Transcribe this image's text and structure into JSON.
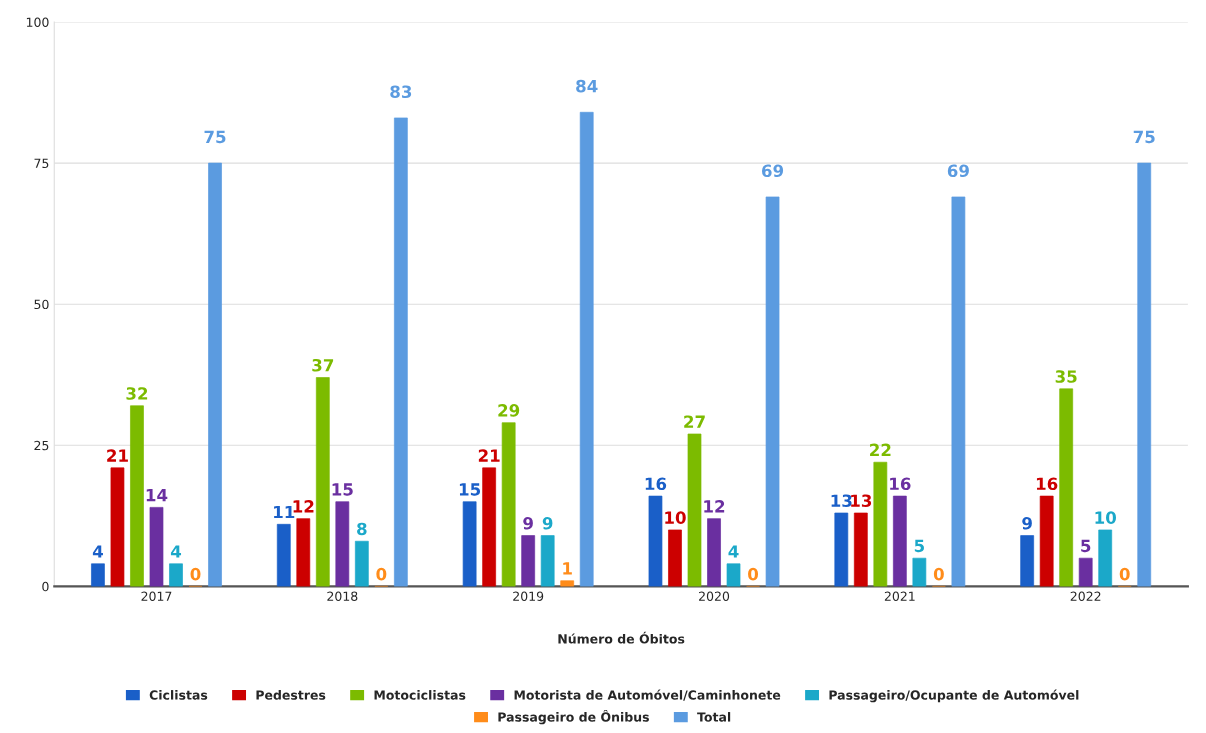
{
  "chart_data": {
    "type": "bar",
    "categories": [
      "2017",
      "2018",
      "2019",
      "2020",
      "2021",
      "2022"
    ],
    "xlabel": "Número de Óbitos",
    "series": [
      {
        "name": "Ciclistas",
        "color": "#1a5fc8",
        "values": [
          4,
          11,
          15,
          16,
          13,
          9
        ]
      },
      {
        "name": "Pedestres",
        "color": "#cc0000",
        "values": [
          21,
          12,
          21,
          10,
          13,
          16
        ]
      },
      {
        "name": "Motociclistas",
        "color": "#7cbb00",
        "values": [
          32,
          37,
          29,
          27,
          22,
          35
        ]
      },
      {
        "name": "Motorista de Automóvel/Caminhonete",
        "color": "#6a2fa0",
        "values": [
          14,
          15,
          9,
          12,
          16,
          5
        ]
      },
      {
        "name": "Passageiro/Ocupante de Automóvel",
        "color": "#1ba8c9",
        "values": [
          4,
          8,
          9,
          4,
          5,
          10
        ]
      },
      {
        "name": "Passageiro de Ônibus",
        "color": "#ff8c1a",
        "values": [
          0,
          0,
          1,
          0,
          0,
          0
        ]
      },
      {
        "name": "Total",
        "color": "#5b9be0",
        "values": [
          75,
          83,
          84,
          69,
          69,
          75
        ]
      }
    ],
    "ylim": [
      0,
      100
    ],
    "yticks": [
      0,
      25,
      50,
      75,
      100
    ],
    "grid": "y",
    "legend": "bottom",
    "data_labels": true
  }
}
